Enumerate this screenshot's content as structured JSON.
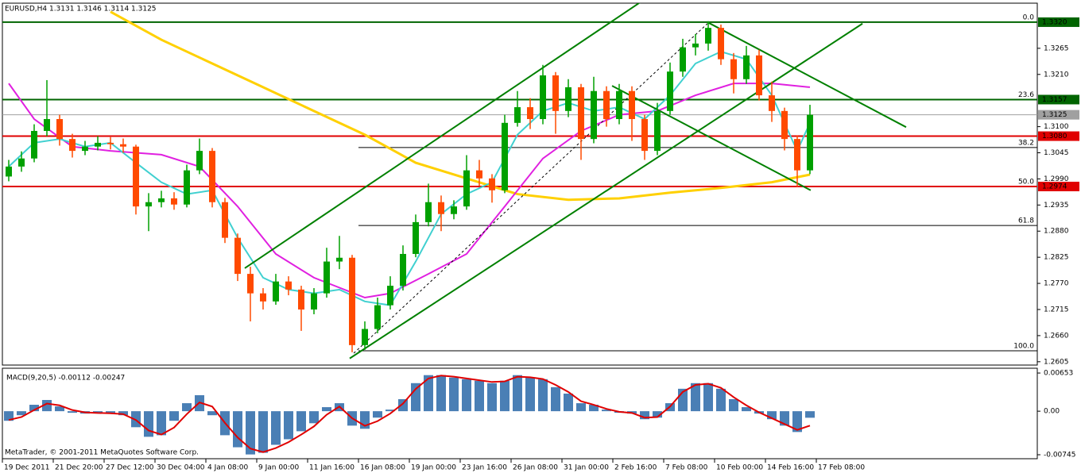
{
  "footer": "MetaTrader, © 2001-2011 MetaQuotes Software Corp.",
  "chart_data": [
    {
      "type": "candlestick",
      "title": "EURUSD,H4  1.3131 1.3146 1.3114 1.3125",
      "x": [
        0,
        1,
        2,
        3,
        4,
        5,
        6,
        7,
        8,
        9,
        10,
        11,
        12,
        13,
        14,
        15,
        16,
        17,
        18,
        19,
        20,
        21,
        22,
        23,
        24,
        25,
        26,
        27,
        28,
        29,
        30,
        31,
        32,
        33,
        34,
        35,
        36,
        37,
        38,
        39,
        40,
        41,
        42,
        43,
        44,
        45,
        46,
        47,
        48,
        49,
        50,
        51,
        52,
        53,
        54,
        55,
        56,
        57,
        58,
        59,
        60,
        61,
        62,
        63
      ],
      "open": [
        1.2995,
        1.3016,
        1.3033,
        1.3091,
        1.3116,
        1.3074,
        1.3049,
        1.3058,
        1.3066,
        1.3063,
        1.3058,
        1.2932,
        1.2941,
        1.2949,
        1.2936,
        1.3008,
        1.3049,
        1.2941,
        1.2866,
        1.279,
        1.2749,
        1.2732,
        1.2774,
        1.2757,
        1.2715,
        1.2749,
        1.2816,
        1.2824,
        1.264,
        1.2674,
        1.2724,
        1.2765,
        1.2832,
        1.2899,
        1.2941,
        1.2916,
        1.2932,
        1.3008,
        1.2991,
        1.2966,
        1.3108,
        1.3141,
        1.3116,
        1.3208,
        1.3133,
        1.3183,
        1.3074,
        1.3175,
        1.3116,
        1.3175,
        1.3116,
        1.3049,
        1.3133,
        1.3216,
        1.3267,
        1.3275,
        1.3308,
        1.3242,
        1.32,
        1.325,
        1.3166,
        1.3133,
        1.3074,
        1.3008
      ],
      "high": [
        1.303,
        1.3048,
        1.3105,
        1.3198,
        1.3125,
        1.3085,
        1.307,
        1.308,
        1.3078,
        1.3075,
        1.3062,
        1.296,
        1.2965,
        1.2962,
        1.302,
        1.3075,
        1.3055,
        1.295,
        1.2875,
        1.2805,
        1.276,
        1.279,
        1.2785,
        1.2765,
        1.276,
        1.2845,
        1.287,
        1.283,
        1.269,
        1.274,
        1.2785,
        1.285,
        1.2915,
        1.298,
        1.2955,
        1.2945,
        1.304,
        1.303,
        1.3,
        1.3125,
        1.3175,
        1.316,
        1.323,
        1.3215,
        1.32,
        1.319,
        1.3205,
        1.3185,
        1.319,
        1.3185,
        1.3125,
        1.315,
        1.3235,
        1.3285,
        1.3295,
        1.3322,
        1.3315,
        1.3255,
        1.327,
        1.3262,
        1.3195,
        1.314,
        1.3082,
        1.3146
      ],
      "low": [
        1.2985,
        1.3005,
        1.3025,
        1.308,
        1.306,
        1.3035,
        1.304,
        1.305,
        1.3052,
        1.3045,
        1.2915,
        1.288,
        1.293,
        1.2925,
        1.293,
        1.3,
        1.293,
        1.2855,
        1.2775,
        1.269,
        1.2715,
        1.2725,
        1.2745,
        1.267,
        1.2705,
        1.274,
        1.28,
        1.2625,
        1.263,
        1.2665,
        1.2715,
        1.2755,
        1.2825,
        1.289,
        1.288,
        1.2905,
        1.2925,
        1.2975,
        1.294,
        1.296,
        1.31,
        1.3095,
        1.3105,
        1.3085,
        1.312,
        1.303,
        1.3065,
        1.31,
        1.3105,
        1.307,
        1.303,
        1.304,
        1.3125,
        1.3205,
        1.325,
        1.326,
        1.323,
        1.317,
        1.319,
        1.3155,
        1.311,
        1.305,
        1.2973,
        1.3
      ],
      "close": [
        1.3016,
        1.3033,
        1.3091,
        1.3116,
        1.3074,
        1.3049,
        1.3058,
        1.3066,
        1.3063,
        1.3058,
        1.2932,
        1.2941,
        1.2949,
        1.2936,
        1.3008,
        1.3049,
        1.2941,
        1.2866,
        1.279,
        1.2749,
        1.2732,
        1.2774,
        1.2757,
        1.2715,
        1.2749,
        1.2816,
        1.2824,
        1.264,
        1.2674,
        1.2724,
        1.2765,
        1.2832,
        1.2899,
        1.2941,
        1.2916,
        1.2932,
        1.3008,
        1.2991,
        1.2966,
        1.3108,
        1.3141,
        1.3116,
        1.3208,
        1.3133,
        1.3183,
        1.3074,
        1.3175,
        1.3116,
        1.3175,
        1.3116,
        1.3049,
        1.3133,
        1.3216,
        1.3267,
        1.3275,
        1.3308,
        1.3242,
        1.32,
        1.325,
        1.3166,
        1.3133,
        1.3074,
        1.3008,
        1.3125
      ],
      "up_color": "#00a000",
      "down_color": "#ff4a00",
      "xlim": [
        -0.5,
        80.875
      ],
      "ylim": [
        1.2598,
        1.336
      ],
      "yticks": [
        {
          "value": 1.3265,
          "label": "1.3265"
        },
        {
          "value": 1.321,
          "label": "1.3210"
        },
        {
          "value": 1.31,
          "label": "1.3100"
        },
        {
          "value": 1.3045,
          "label": "1.3045"
        },
        {
          "value": 1.299,
          "label": "1.2990"
        },
        {
          "value": 1.2935,
          "label": "1.2935"
        },
        {
          "value": 1.288,
          "label": "1.2880"
        },
        {
          "value": 1.2825,
          "label": "1.2825"
        },
        {
          "value": 1.277,
          "label": "1.2770"
        },
        {
          "value": 1.2715,
          "label": "1.2715"
        },
        {
          "value": 1.266,
          "label": "1.2660"
        },
        {
          "value": 1.2605,
          "label": "1.2605"
        }
      ],
      "overlays": [
        {
          "color": "#ffd000",
          "x": [
            8,
            12,
            16,
            20,
            24,
            28,
            32,
            36,
            40,
            44,
            48,
            52,
            56,
            60,
            63
          ],
          "values": [
            1.3342,
            1.3283,
            1.3233,
            1.3183,
            1.3133,
            1.3083,
            1.3024,
            1.2991,
            1.2958,
            1.2946,
            1.2949,
            1.2961,
            1.2971,
            1.2983,
            1.2999
          ]
        },
        {
          "color": "#e020e0",
          "x": [
            0,
            2,
            5,
            8,
            12,
            15,
            18,
            21,
            24,
            28,
            30,
            33,
            36,
            39,
            42,
            45,
            48,
            51,
            54,
            57,
            60,
            63
          ],
          "values": [
            1.3191,
            1.3116,
            1.3058,
            1.3049,
            1.3041,
            1.3016,
            1.2932,
            1.2832,
            1.2782,
            1.274,
            1.2749,
            1.279,
            1.2832,
            1.2932,
            1.3033,
            1.3091,
            1.3125,
            1.3133,
            1.3166,
            1.3191,
            1.3191,
            1.3183
          ]
        },
        {
          "color": "#40d0d0",
          "x": [
            0,
            2,
            4,
            6,
            8,
            10,
            12,
            14,
            16,
            18,
            20,
            22,
            24,
            26,
            28,
            30,
            32,
            34,
            36,
            38,
            40,
            42,
            44,
            46,
            48,
            50,
            52,
            54,
            56,
            58,
            60,
            62,
            63
          ],
          "values": [
            1.3016,
            1.3066,
            1.3074,
            1.3058,
            1.3066,
            1.3024,
            1.2983,
            1.2958,
            1.2966,
            1.2866,
            1.2782,
            1.2757,
            1.2749,
            1.2757,
            1.2732,
            1.2724,
            1.2816,
            1.2916,
            1.2958,
            1.2983,
            1.3083,
            1.3133,
            1.315,
            1.3133,
            1.3141,
            1.3116,
            1.3166,
            1.3233,
            1.3258,
            1.3242,
            1.3166,
            1.3049,
            1.3108
          ]
        }
      ],
      "levels": [
        {
          "value": 1.332,
          "label": "1.3320",
          "color": "#006400"
        },
        {
          "value": 1.3157,
          "label": "1.3157",
          "color": "#006400"
        },
        {
          "value": 1.3125,
          "label": "1.3125",
          "color": "#a0a0a0"
        },
        {
          "value": 1.308,
          "label": "1.3080",
          "color": "#e00000"
        },
        {
          "value": 1.2974,
          "label": "1.2974",
          "color": "#e00000"
        }
      ],
      "fibonacci": {
        "x_start": 27.5,
        "color": "#000000",
        "levels": [
          {
            "level": "0.0",
            "price": 1.332
          },
          {
            "level": "23.6",
            "price": 1.3157
          },
          {
            "level": "38.2",
            "price": 1.3056
          },
          {
            "level": "50.0",
            "price": 1.2974
          },
          {
            "level": "61.8",
            "price": 1.2892
          },
          {
            "level": "100.0",
            "price": 1.2628
          }
        ]
      },
      "trendlines": [
        {
          "color": "#008000",
          "x": [
            18.56,
            49.94
          ],
          "values": [
            1.2802,
            1.3367
          ]
        },
        {
          "color": "#008000",
          "x": [
            26.81,
            67.13
          ],
          "values": [
            1.2612,
            1.3317
          ]
        },
        {
          "color": "#008000",
          "x": [
            47.44,
            63.06
          ],
          "values": [
            1.3186,
            1.2966
          ]
        },
        {
          "color": "#008000",
          "x": [
            54.94,
            70.56
          ],
          "values": [
            1.332,
            1.3099
          ]
        },
        {
          "color": "#000000",
          "dashed": true,
          "x": [
            27.13,
            54.94
          ],
          "values": [
            1.2623,
            1.3317
          ]
        }
      ]
    },
    {
      "type": "macd",
      "title": "MACD(9,20,5) -0.00112 -0.00247",
      "x": [
        0,
        1,
        2,
        3,
        4,
        5,
        6,
        7,
        8,
        9,
        10,
        11,
        12,
        13,
        14,
        15,
        16,
        17,
        18,
        19,
        20,
        21,
        22,
        23,
        24,
        25,
        26,
        27,
        28,
        29,
        30,
        31,
        32,
        33,
        34,
        35,
        36,
        37,
        38,
        39,
        40,
        41,
        42,
        43,
        44,
        45,
        46,
        47,
        48,
        49,
        50,
        51,
        52,
        53,
        54,
        55,
        56,
        57,
        58,
        59,
        60,
        61,
        62,
        63
      ],
      "values": [
        -0.00164,
        -0.00069,
        0.0011,
        0.00192,
        0.00082,
        -0.00027,
        -0.00041,
        -0.00027,
        -0.00041,
        -0.00069,
        -0.00274,
        -0.00438,
        -0.00411,
        -0.00164,
        0.00137,
        0.00274,
        -0.00069,
        -0.00411,
        -0.00617,
        -0.0074,
        -0.00712,
        -0.00575,
        -0.0048,
        -0.00343,
        -0.00206,
        0.00069,
        0.00137,
        -0.00247,
        -0.00301,
        -0.0011,
        0.00027,
        0.00206,
        0.0048,
        0.00617,
        0.00617,
        0.00575,
        0.00548,
        0.00521,
        0.0048,
        0.00521,
        0.00617,
        0.00575,
        0.00548,
        0.00411,
        0.00301,
        0.00137,
        0.0011,
        0.00027,
        -0.00027,
        -0.00041,
        -0.00137,
        -0.0011,
        0.00137,
        0.00384,
        0.0048,
        0.0048,
        0.00384,
        0.00206,
        0.00069,
        -0.00041,
        -0.00137,
        -0.00247,
        -0.00356,
        -0.00112
      ],
      "color": "#4a7fb5",
      "signal": {
        "color": "#e00000",
        "values": [
          -0.0015,
          -0.001,
          0.0002,
          0.0013,
          0.001,
          0.0002,
          -0.0002,
          -0.0003,
          -0.00035,
          -0.0005,
          -0.0015,
          -0.0033,
          -0.004,
          -0.0028,
          -0.0005,
          0.0015,
          0.0008,
          -0.002,
          -0.0045,
          -0.0064,
          -0.007,
          -0.0063,
          -0.0053,
          -0.004,
          -0.0026,
          -0.0006,
          0.0008,
          -0.0012,
          -0.0025,
          -0.0017,
          -0.0004,
          0.0013,
          0.0038,
          0.0056,
          0.0061,
          0.0059,
          0.0056,
          0.0053,
          0.005,
          0.0051,
          0.0059,
          0.0058,
          0.0055,
          0.0045,
          0.0033,
          0.0017,
          0.0011,
          0.0004,
          -0.0001,
          -0.0003,
          -0.0011,
          -0.001,
          0.0008,
          0.0033,
          0.0045,
          0.0047,
          0.004,
          0.0024,
          0.001,
          -0.0002,
          -0.0012,
          -0.0022,
          -0.0032,
          -0.00247
        ]
      },
      "xlim": [
        -0.5,
        80.875
      ],
      "ylim": [
        -0.00813,
        0.00735
      ],
      "yticks": [
        0.00653,
        {
          "value": 0,
          "label": "0.00"
        },
        -0.00745
      ],
      "xticks": [
        {
          "value": -0.5,
          "label": "19 Dec 2011"
        },
        {
          "value": 3.5,
          "label": "21 Dec 20:00"
        },
        {
          "value": 7.5,
          "label": "27 Dec 12:00"
        },
        {
          "value": 11.5,
          "label": "30 Dec 04:00"
        },
        {
          "value": 15.5,
          "label": "4 Jan 08:00"
        },
        {
          "value": 19.5,
          "label": "9 Jan 00:00"
        },
        {
          "value": 23.5,
          "label": "11 Jan 16:00"
        },
        {
          "value": 27.5,
          "label": "16 Jan 08:00"
        },
        {
          "value": 31.5,
          "label": "19 Jan 00:00"
        },
        {
          "value": 35.5,
          "label": "23 Jan 16:00"
        },
        {
          "value": 39.5,
          "label": "26 Jan 08:00"
        },
        {
          "value": 43.5,
          "label": "31 Jan 00:00"
        },
        {
          "value": 47.5,
          "label": "2 Feb 16:00"
        },
        {
          "value": 51.5,
          "label": "7 Feb 08:00"
        },
        {
          "value": 55.5,
          "label": "10 Feb 00:00"
        },
        {
          "value": 59.5,
          "label": "14 Feb 16:00"
        },
        {
          "value": 63.5,
          "label": "17 Feb 08:00"
        }
      ]
    }
  ]
}
